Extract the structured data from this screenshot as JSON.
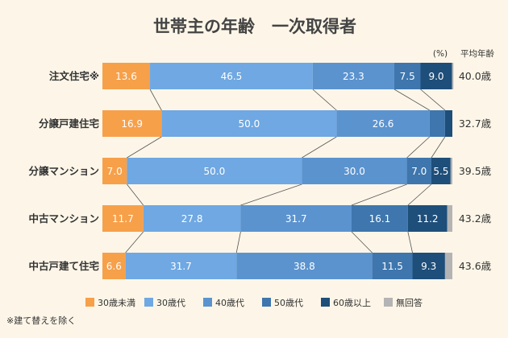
{
  "chart_data": {
    "type": "bar",
    "orientation": "horizontal-stacked-100",
    "title": "世帯主の年齢　一次取得者",
    "unit_label": "(%)",
    "avg_header": "平均年齢",
    "categories": [
      "注文住宅※",
      "分譲戸建住宅",
      "分譲マンション",
      "中古マンション",
      "中古戸建て住宅"
    ],
    "series": [
      {
        "name": "30歳未満",
        "color": "#f7a04a",
        "values": [
          13.6,
          16.9,
          7.0,
          11.7,
          6.6
        ]
      },
      {
        "name": "30歳代",
        "color": "#6fa8e2",
        "values": [
          46.5,
          50.0,
          50.0,
          27.8,
          31.7
        ]
      },
      {
        "name": "40歳代",
        "color": "#5b93cf",
        "values": [
          23.3,
          26.6,
          30.0,
          31.7,
          38.8
        ]
      },
      {
        "name": "50歳代",
        "color": "#3e76ad",
        "values": [
          7.5,
          4.4,
          7.0,
          16.1,
          11.5
        ]
      },
      {
        "name": "60歳以上",
        "color": "#1e4e7a",
        "values": [
          9.0,
          2.1,
          5.5,
          11.2,
          9.3
        ]
      },
      {
        "name": "無回答",
        "color": "#b4b4b4",
        "values": [
          0.4,
          0.0,
          0.5,
          1.5,
          2.1
        ]
      }
    ],
    "labels": [
      [
        "13.6",
        "46.5",
        "23.3",
        "7.5",
        "9.0",
        ""
      ],
      [
        "16.9",
        "50.0",
        "26.6",
        "",
        "",
        ""
      ],
      [
        "7.0",
        "50.0",
        "30.0",
        "7.0",
        "5.5",
        ""
      ],
      [
        "11.7",
        "27.8",
        "31.7",
        "16.1",
        "11.2",
        ""
      ],
      [
        "6.6",
        "31.7",
        "38.8",
        "11.5",
        "9.3",
        ""
      ]
    ],
    "averages": [
      "40.0歳",
      "32.7歳",
      "39.5歳",
      "43.2歳",
      "43.6歳"
    ],
    "footnote": "※建て替えを除く"
  }
}
